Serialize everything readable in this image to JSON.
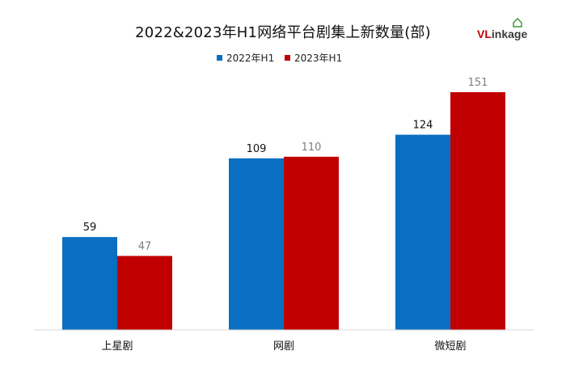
{
  "title": "2022&2023年H1网络平台剧集上新数量(部)",
  "logo": {
    "part1": "VL",
    "part2": "inkage"
  },
  "chart_data": {
    "type": "bar",
    "title": "2022&2023年H1网络平台剧集上新数量(部)",
    "categories": [
      "上星剧",
      "网剧",
      "微短剧"
    ],
    "series": [
      {
        "name": "2022年H1",
        "color": "#0a6fc2",
        "label_color": "#111111",
        "values": [
          59,
          109,
          124
        ]
      },
      {
        "name": "2023年H1",
        "color": "#c00000",
        "label_color": "#7f7f7f",
        "values": [
          47,
          110,
          151
        ]
      }
    ],
    "ylim": [
      0,
      170
    ],
    "grid": false,
    "legend": "top-center",
    "data_labels": true
  }
}
